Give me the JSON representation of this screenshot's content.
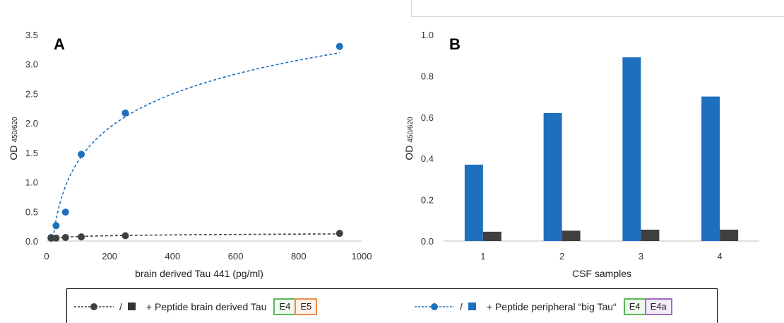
{
  "colors": {
    "blue": "#1f6fbf",
    "dark": "#404040"
  },
  "chart_data": [
    {
      "panel": "A",
      "type": "scatter",
      "xlabel": "brain derived Tau 441 (pg/ml)",
      "ylabel_main": "OD",
      "ylabel_sub": "450/620",
      "xlim": [
        0,
        1000
      ],
      "ylim": [
        0,
        3.5
      ],
      "xticks": [
        "0",
        "200",
        "400",
        "600",
        "800",
        "1000"
      ],
      "yticks": [
        "0.0",
        "0.5",
        "1.0",
        "1.5",
        "2.0",
        "2.5",
        "3.0",
        "3.5"
      ],
      "series": [
        {
          "color": "#1f6fbf",
          "x": [
            14,
            30,
            60,
            110,
            250,
            930
          ],
          "y": [
            0.06,
            0.26,
            0.49,
            1.47,
            2.17,
            3.3
          ]
        },
        {
          "color": "#404040",
          "x": [
            14,
            30,
            60,
            110,
            250,
            930
          ],
          "y": [
            0.05,
            0.05,
            0.06,
            0.07,
            0.09,
            0.13
          ]
        }
      ]
    },
    {
      "panel": "B",
      "type": "bar",
      "xlabel": "CSF samples",
      "ylabel_main": "OD",
      "ylabel_sub": "450/620",
      "ylim": [
        0,
        1.0
      ],
      "yticks": [
        "0.0",
        "0.2",
        "0.4",
        "0.6",
        "0.8",
        "1.0"
      ],
      "categories": [
        "1",
        "2",
        "3",
        "4"
      ],
      "series": [
        {
          "color": "#1f6fbf",
          "values": [
            0.37,
            0.62,
            0.89,
            0.7
          ]
        },
        {
          "color": "#404040",
          "values": [
            0.045,
            0.05,
            0.055,
            0.055
          ]
        }
      ]
    }
  ],
  "legend": {
    "left": {
      "slash": "/",
      "text": "+ Peptide brain derived Tau",
      "tags": [
        "E4",
        "E5"
      ]
    },
    "right": {
      "slash": "/",
      "text": "+ Peptide peripheral “big Tau“",
      "tags": [
        "E4",
        "E4a"
      ]
    }
  }
}
